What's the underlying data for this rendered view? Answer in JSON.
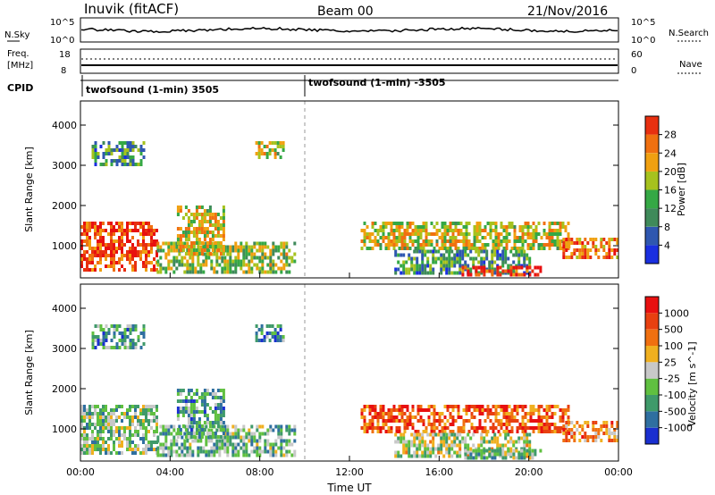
{
  "header": {
    "station": "Inuvik (fitACF)",
    "beam": "Beam 00",
    "date": "21/Nov/2016"
  },
  "noise_panel": {
    "left_label": "N.Sky",
    "right_label": "N.Search",
    "left_ticks": [
      "10^5",
      "10^0"
    ],
    "right_ticks": [
      "10^5",
      "10^0"
    ]
  },
  "freq_panel": {
    "left_label_1": "Freq.",
    "left_label_2": "[MHz]",
    "right_label": "Nave",
    "left_ticks": [
      "18",
      "8"
    ],
    "right_ticks": [
      "60",
      "0"
    ]
  },
  "cpid": {
    "label": "CPID",
    "segments": [
      {
        "name": "twofsound (1-min) 3505",
        "start_hour": 0
      },
      {
        "name": "twofsound (1-min) -3505",
        "start_hour": 10
      }
    ]
  },
  "colors": {
    "power": [
      "#1a2fe0",
      "#2f57b0",
      "#3f8a5a",
      "#35a845",
      "#a6c21e",
      "#f0a010",
      "#f07010",
      "#e83010",
      "#e81010"
    ],
    "velocity": [
      "#1a2fd0",
      "#2f6fa0",
      "#3f9a6a",
      "#60c040",
      "#c8c8c8",
      "#f0b020",
      "#f07010",
      "#e84010",
      "#e81010"
    ]
  },
  "chart_data": [
    {
      "type": "heatmap",
      "panel": "power",
      "ylabel": "Slant Range [km]",
      "xlabel": "",
      "x_ticks": [
        "00:00",
        "04:00",
        "08:00",
        "12:00",
        "16:00",
        "20:00",
        "00:00"
      ],
      "y_ticks": [
        "1000",
        "2000",
        "3000",
        "4000"
      ],
      "ylim": [
        200,
        4600
      ],
      "xlim_hours": [
        0,
        24
      ],
      "colorbar_label": "Power [dB]",
      "colorbar_ticks": [
        "4",
        "8",
        "12",
        "16",
        "20",
        "24",
        "28"
      ],
      "regions": [
        {
          "t0": 0.0,
          "t1": 3.4,
          "r0": 400,
          "r1": 1600,
          "level": 0.8
        },
        {
          "t0": 3.4,
          "t1": 9.5,
          "r0": 300,
          "r1": 1100,
          "level": 0.45
        },
        {
          "t0": 4.3,
          "t1": 6.4,
          "r0": 800,
          "r1": 2000,
          "level": 0.55
        },
        {
          "t0": 7.8,
          "t1": 9.1,
          "r0": 3200,
          "r1": 3600,
          "level": 0.5
        },
        {
          "t0": 0.5,
          "t1": 2.8,
          "r0": 3000,
          "r1": 3600,
          "level": 0.3
        },
        {
          "t0": 12.5,
          "t1": 21.8,
          "r0": 900,
          "r1": 1600,
          "level": 0.55
        },
        {
          "t0": 14.0,
          "t1": 20.0,
          "r0": 300,
          "r1": 900,
          "level": 0.3
        },
        {
          "t0": 17.0,
          "t1": 20.5,
          "r0": 250,
          "r1": 500,
          "level": 0.85
        },
        {
          "t0": 21.5,
          "t1": 24.0,
          "r0": 700,
          "r1": 1200,
          "level": 0.75
        }
      ]
    },
    {
      "type": "heatmap",
      "panel": "velocity",
      "ylabel": "Slant Range [km]",
      "xlabel": "Time UT",
      "x_ticks": [
        "00:00",
        "04:00",
        "08:00",
        "12:00",
        "16:00",
        "20:00",
        "00:00"
      ],
      "y_ticks": [
        "1000",
        "2000",
        "3000",
        "4000"
      ],
      "ylim": [
        200,
        4600
      ],
      "xlim_hours": [
        0,
        24
      ],
      "colorbar_label": "Velocity [m s^-1]",
      "colorbar_ticks": [
        "1000",
        "500",
        "100",
        "25",
        "-25",
        "-100",
        "-500",
        "-1000"
      ],
      "regions": [
        {
          "t0": 0.0,
          "t1": 3.4,
          "r0": 400,
          "r1": 1600,
          "level": 0.4
        },
        {
          "t0": 3.4,
          "t1": 9.5,
          "r0": 300,
          "r1": 1100,
          "level": 0.35
        },
        {
          "t0": 4.3,
          "t1": 6.4,
          "r0": 800,
          "r1": 2000,
          "level": 0.3
        },
        {
          "t0": 7.8,
          "t1": 9.1,
          "r0": 3200,
          "r1": 3600,
          "level": 0.25
        },
        {
          "t0": 0.5,
          "t1": 2.8,
          "r0": 3000,
          "r1": 3600,
          "level": 0.3
        },
        {
          "t0": 12.5,
          "t1": 21.8,
          "r0": 900,
          "r1": 1600,
          "level": 0.8
        },
        {
          "t0": 14.0,
          "t1": 20.0,
          "r0": 300,
          "r1": 900,
          "level": 0.45
        },
        {
          "t0": 17.0,
          "t1": 20.5,
          "r0": 250,
          "r1": 500,
          "level": 0.4
        },
        {
          "t0": 21.5,
          "t1": 24.0,
          "r0": 700,
          "r1": 1200,
          "level": 0.7
        }
      ]
    }
  ]
}
